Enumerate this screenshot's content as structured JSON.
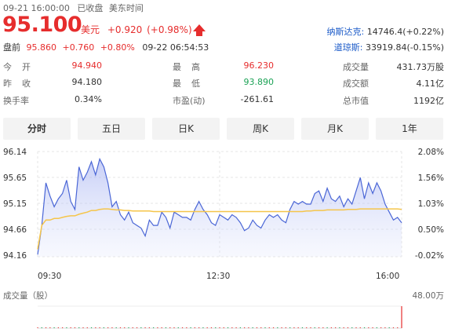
{
  "header": {
    "datetime": "09-21 16:00:00",
    "status": "已收盘",
    "tz": "美东时间",
    "price": "95.100",
    "currency": "美元",
    "change": "+0.920",
    "change_pct": "(+0.98%)",
    "premarket_label": "盘前",
    "premarket_price": "95.860",
    "premarket_change": "+0.760",
    "premarket_pct": "+0.80%",
    "premarket_time": "09-22 06:54:53",
    "nasdaq_label": "纳斯达克:",
    "nasdaq_value": "14746.4(+0.22%)",
    "dow_label": "道琼斯:",
    "dow_value": "33919.84(-0.15%)",
    "colors": {
      "up": "#e62d2d",
      "down": "#1ba255",
      "link": "#1a5ac8"
    }
  },
  "stats": {
    "open_label": "今　开",
    "open": "94.940",
    "prev_label": "昨　收",
    "prev": "94.180",
    "turnover_label": "换手率",
    "turnover": "0.34%",
    "high_label": "最　高",
    "high": "96.230",
    "low_label": "最　低",
    "low": "93.890",
    "pe_label": "市盈(动)",
    "pe": "-261.61",
    "volume_label": "成交量",
    "volume": "431.73万股",
    "amount_label": "成交额",
    "amount": "4.11亿",
    "mktcap_label": "总市值",
    "mktcap": "1192亿"
  },
  "tabs": [
    "分时",
    "五日",
    "日K",
    "周K",
    "月K",
    "1年"
  ],
  "chart_data": {
    "type": "line",
    "title": "",
    "y_ticks": [
      "96.14",
      "95.65",
      "95.15",
      "94.66",
      "94.16"
    ],
    "pct_ticks": [
      "2.08%",
      "1.56%",
      "1.03%",
      "0.50%",
      "-0.02%"
    ],
    "x_ticks": [
      "09:30",
      "12:30",
      "16:00"
    ],
    "ylim": [
      94.16,
      96.14
    ],
    "volume_label": "成交量（股）",
    "volume_max": "48.00万",
    "series": [
      {
        "name": "",
        "color": "#4a66d6",
        "values": [
          94.2,
          94.75,
          95.55,
          95.3,
          95.1,
          95.25,
          95.35,
          95.6,
          95.2,
          95.05,
          95.85,
          95.6,
          95.75,
          95.95,
          95.7,
          96.0,
          95.85,
          95.55,
          95.1,
          95.2,
          94.95,
          94.85,
          95.0,
          94.8,
          94.75,
          94.7,
          94.55,
          94.85,
          94.75,
          94.75,
          95.0,
          94.9,
          94.7,
          95.0,
          94.95,
          94.9,
          94.9,
          94.85,
          95.05,
          95.2,
          95.05,
          94.95,
          94.8,
          94.75,
          94.95,
          94.9,
          94.85,
          94.95,
          94.9,
          94.8,
          94.65,
          94.7,
          94.85,
          94.75,
          94.7,
          94.85,
          94.95,
          94.9,
          94.95,
          94.85,
          94.8,
          95.05,
          95.2,
          95.15,
          95.2,
          95.15,
          95.15,
          95.35,
          95.4,
          95.2,
          95.45,
          95.25,
          95.2,
          95.3,
          95.1,
          95.25,
          95.15,
          95.4,
          95.65,
          95.25,
          95.55,
          95.35,
          95.55,
          95.4,
          95.15,
          95.0,
          94.85,
          94.9,
          94.8
        ]
      },
      {
        "name": "",
        "color": "#f5c54a",
        "values": [
          94.3,
          94.75,
          94.85,
          94.85,
          94.88,
          94.88,
          94.9,
          94.92,
          94.93,
          94.93,
          94.96,
          94.98,
          95.0,
          95.03,
          95.03,
          95.05,
          95.06,
          95.06,
          95.05,
          95.04,
          95.04,
          95.03,
          95.03,
          95.02,
          95.02,
          95.02,
          95.02,
          95.02,
          95.01,
          95.01,
          95.01,
          95.01,
          95.01,
          95.01,
          95.01,
          95.01,
          95.01,
          95.01,
          95.01,
          95.01,
          95.01,
          95.01,
          95.01,
          95.01,
          95.01,
          95.01,
          95.01,
          95.01,
          95.01,
          95.01,
          95.01,
          95.01,
          95.01,
          95.01,
          95.01,
          95.01,
          95.01,
          95.01,
          95.01,
          95.01,
          95.01,
          95.01,
          95.01,
          95.01,
          95.01,
          95.02,
          95.02,
          95.03,
          95.03,
          95.03,
          95.04,
          95.04,
          95.04,
          95.04,
          95.04,
          95.05,
          95.05,
          95.05,
          95.06,
          95.06,
          95.06,
          95.06,
          95.06,
          95.06,
          95.06,
          95.06,
          95.06,
          95.06,
          95.05
        ]
      }
    ],
    "volume": [
      0.6,
      0.05,
      0.05,
      0.05,
      0.05,
      0.05,
      0.05,
      0.05,
      0.05,
      0.05,
      0.05,
      0.05,
      0.05,
      0.08,
      0.05,
      0.05,
      0.05,
      0.05,
      0.05,
      0.05,
      0.05,
      0.05,
      0.05,
      0.05,
      0.05,
      0.05,
      0.05,
      0.05,
      0.05,
      0.05,
      0.05,
      0.05,
      0.05,
      0.05,
      0.05,
      0.05,
      0.05,
      0.05,
      0.05,
      0.05,
      0.05,
      0.05,
      0.05,
      0.05,
      0.05,
      0.05,
      0.05,
      0.05,
      0.05,
      0.05,
      0.05,
      0.05,
      0.05,
      0.05,
      0.05,
      0.05,
      0.05,
      0.05,
      0.05,
      0.05,
      0.05,
      0.05,
      0.05,
      0.05,
      0.05,
      0.05,
      0.05,
      0.05,
      0.05,
      0.05,
      0.05,
      0.05,
      0.05,
      0.05,
      0.05,
      0.05,
      0.05,
      0.05,
      0.05,
      0.05,
      0.05,
      0.05,
      0.05,
      0.05,
      0.05,
      0.05,
      0.05,
      0.05,
      48.0
    ]
  }
}
